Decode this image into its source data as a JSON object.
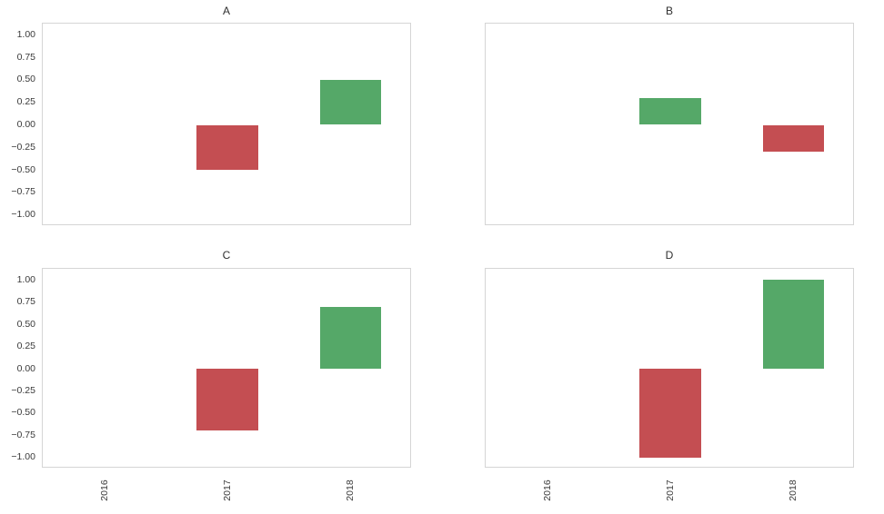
{
  "figure": {
    "background": "#ffffff"
  },
  "colors": {
    "positive_bar": "#55a868",
    "negative_bar": "#c44e52",
    "spine": "#d5d5d5",
    "text": "#3a3a3a"
  },
  "layout_hints": {
    "grid": "2x2",
    "sharex": true,
    "sharey": true,
    "grid_lines": false,
    "legend": "none",
    "xtick_rotation_deg": 90
  },
  "chart_data": [
    {
      "type": "bar",
      "title": "A",
      "categories": [
        "2016",
        "2017",
        "2018"
      ],
      "values": [
        0,
        -0.5,
        0.5
      ],
      "xlabel": "",
      "ylabel": "",
      "ylim": [
        -1.125,
        1.125
      ],
      "ytick_values": [
        1.0,
        0.75,
        0.5,
        0.25,
        0.0,
        -0.25,
        -0.5,
        -0.75,
        -1.0
      ],
      "ytick_labels": [
        "1.00",
        "0.75",
        "0.50",
        "0.25",
        "0.00",
        "−0.25",
        "−0.50",
        "−0.75",
        "−1.00"
      ],
      "show_ytick_labels": true,
      "show_xtick_labels": false
    },
    {
      "type": "bar",
      "title": "B",
      "categories": [
        "2016",
        "2017",
        "2018"
      ],
      "values": [
        0,
        0.3,
        -0.3
      ],
      "xlabel": "",
      "ylabel": "",
      "ylim": [
        -1.125,
        1.125
      ],
      "ytick_values": [
        1.0,
        0.75,
        0.5,
        0.25,
        0.0,
        -0.25,
        -0.5,
        -0.75,
        -1.0
      ],
      "ytick_labels": [
        "1.00",
        "0.75",
        "0.50",
        "0.25",
        "0.00",
        "−0.25",
        "−0.50",
        "−0.75",
        "−1.00"
      ],
      "show_ytick_labels": false,
      "show_xtick_labels": false
    },
    {
      "type": "bar",
      "title": "C",
      "categories": [
        "2016",
        "2017",
        "2018"
      ],
      "values": [
        0,
        -0.7,
        0.7
      ],
      "xlabel": "",
      "ylabel": "",
      "ylim": [
        -1.125,
        1.125
      ],
      "ytick_values": [
        1.0,
        0.75,
        0.5,
        0.25,
        0.0,
        -0.25,
        -0.5,
        -0.75,
        -1.0
      ],
      "ytick_labels": [
        "1.00",
        "0.75",
        "0.50",
        "0.25",
        "0.00",
        "−0.25",
        "−0.50",
        "−0.75",
        "−1.00"
      ],
      "show_ytick_labels": true,
      "show_xtick_labels": true
    },
    {
      "type": "bar",
      "title": "D",
      "categories": [
        "2016",
        "2017",
        "2018"
      ],
      "values": [
        0,
        -1.0,
        1.0
      ],
      "xlabel": "",
      "ylabel": "",
      "ylim": [
        -1.125,
        1.125
      ],
      "ytick_values": [
        1.0,
        0.75,
        0.5,
        0.25,
        0.0,
        -0.25,
        -0.5,
        -0.75,
        -1.0
      ],
      "ytick_labels": [
        "1.00",
        "0.75",
        "0.50",
        "0.25",
        "0.00",
        "−0.25",
        "−0.50",
        "−0.75",
        "−1.00"
      ],
      "show_ytick_labels": false,
      "show_xtick_labels": true
    }
  ]
}
